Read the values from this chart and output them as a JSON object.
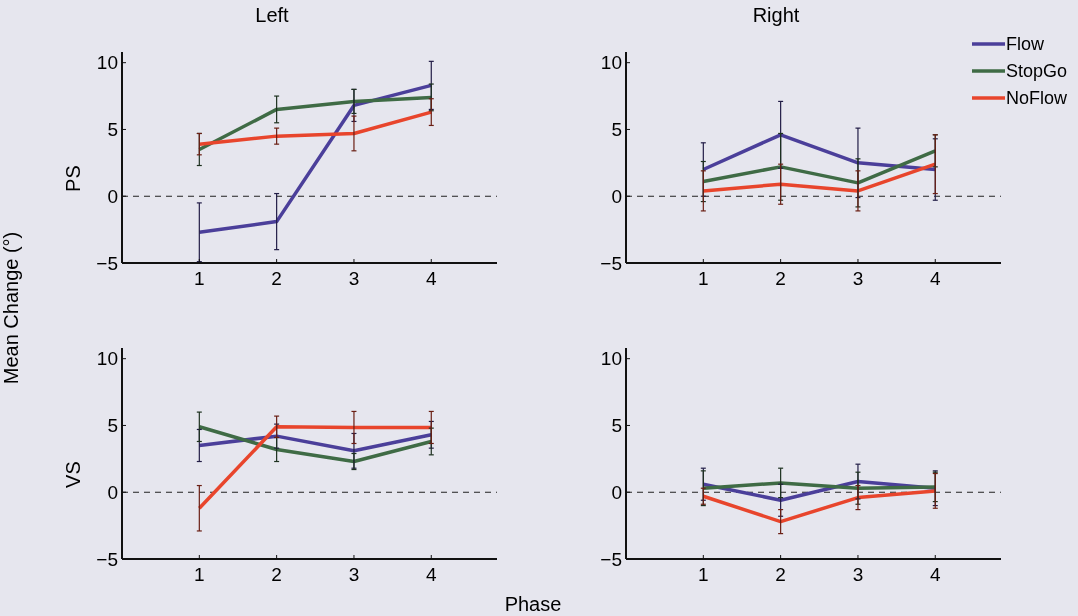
{
  "chart_data": [
    {
      "type": "line",
      "title": "Left",
      "ylabel": "PS",
      "x": [
        1,
        2,
        3,
        4
      ],
      "xlim": [
        0,
        4.85
      ],
      "xticks": [
        1,
        2,
        3,
        4
      ],
      "ylim": [
        -5,
        10.8
      ],
      "yticks": [
        -5,
        0,
        5,
        10
      ],
      "ref_lines": [
        {
          "axis": "y",
          "value": 0,
          "color": "#222222",
          "line_style": "dashed"
        }
      ],
      "annotations": [
        "Mean Change (°)"
      ],
      "series": [
        {
          "color": "#4b3f9a",
          "values": [
            -2.7,
            -1.9,
            6.8,
            8.3
          ],
          "errors": [
            2.2,
            2.1,
            1.2,
            1.8
          ]
        },
        {
          "color": "#3f6b45",
          "values": [
            3.5,
            6.5,
            7.1,
            7.4
          ],
          "errors": [
            1.2,
            1,
            0.9,
            1
          ]
        },
        {
          "color": "#e8452c",
          "values": [
            3.9,
            4.5,
            4.7,
            6.3
          ],
          "errors": [
            0.8,
            0.6,
            1.3,
            1
          ]
        }
      ]
    },
    {
      "type": "line",
      "title": "Right",
      "x": [
        1,
        2,
        3,
        4
      ],
      "xlim": [
        0,
        4.85
      ],
      "xticks": [
        1,
        2,
        3,
        4
      ],
      "ylim": [
        -5,
        10.8
      ],
      "yticks": [
        -5,
        0,
        5,
        10
      ],
      "ref_lines": [
        {
          "axis": "y",
          "value": 0,
          "color": "#222222",
          "line_style": "dashed"
        }
      ],
      "legend": "top right",
      "series": [
        {
          "name": "Flow",
          "color": "#4b3f9a",
          "values": [
            2,
            4.6,
            2.5,
            2
          ],
          "errors": [
            2,
            2.5,
            2.6,
            2.3
          ]
        },
        {
          "name": "StopGo",
          "color": "#3f6b45",
          "values": [
            1.1,
            2.2,
            1,
            3.4
          ],
          "errors": [
            1.5,
            2.5,
            1.8,
            1.2
          ]
        },
        {
          "name": "NoFlow",
          "color": "#e8452c",
          "values": [
            0.4,
            0.9,
            0.4,
            2.4
          ],
          "errors": [
            1.5,
            1.5,
            1.5,
            2.2
          ]
        }
      ]
    },
    {
      "type": "line",
      "ylabel": "VS",
      "x": [
        1,
        2,
        3,
        4
      ],
      "xlim": [
        0,
        4.85
      ],
      "xticks": [
        1,
        2,
        3,
        4
      ],
      "ylim": [
        -5,
        10.8
      ],
      "yticks": [
        -5,
        0,
        5,
        10
      ],
      "ref_lines": [
        {
          "axis": "y",
          "value": 0,
          "color": "#222222",
          "line_style": "dashed"
        }
      ],
      "annotations": [
        "Phase"
      ],
      "series": [
        {
          "color": "#4b3f9a",
          "values": [
            3.5,
            4.2,
            3.1,
            4.3
          ],
          "errors": [
            1.2,
            0.9,
            1.3,
            1
          ]
        },
        {
          "color": "#3f6b45",
          "values": [
            4.9,
            3.2,
            2.3,
            3.8
          ],
          "errors": [
            1.1,
            0.9,
            0.6,
            1
          ]
        },
        {
          "color": "#e8452c",
          "values": [
            -1.2,
            4.9,
            4.85,
            4.85
          ],
          "errors": [
            1.7,
            0.8,
            1.2,
            1.2
          ]
        }
      ]
    },
    {
      "type": "line",
      "x": [
        1,
        2,
        3,
        4
      ],
      "xlim": [
        0,
        4.85
      ],
      "xticks": [
        1,
        2,
        3,
        4
      ],
      "ylim": [
        -5,
        10.8
      ],
      "yticks": [
        -5,
        0,
        5,
        10
      ],
      "ref_lines": [
        {
          "axis": "y",
          "value": 0,
          "color": "#222222",
          "line_style": "dashed"
        }
      ],
      "series": [
        {
          "color": "#4b3f9a",
          "values": [
            0.6,
            -0.6,
            0.8,
            0.3
          ],
          "errors": [
            1.2,
            1.2,
            1.3,
            1.3
          ]
        },
        {
          "color": "#3f6b45",
          "values": [
            0.3,
            0.7,
            0.3,
            0.4
          ],
          "errors": [
            1.3,
            1.1,
            1.2,
            1.1
          ]
        },
        {
          "color": "#e8452c",
          "values": [
            -0.3,
            -2.2,
            -0.4,
            0.1
          ],
          "errors": [
            0.6,
            0.9,
            0.9,
            1.3
          ]
        }
      ]
    }
  ]
}
